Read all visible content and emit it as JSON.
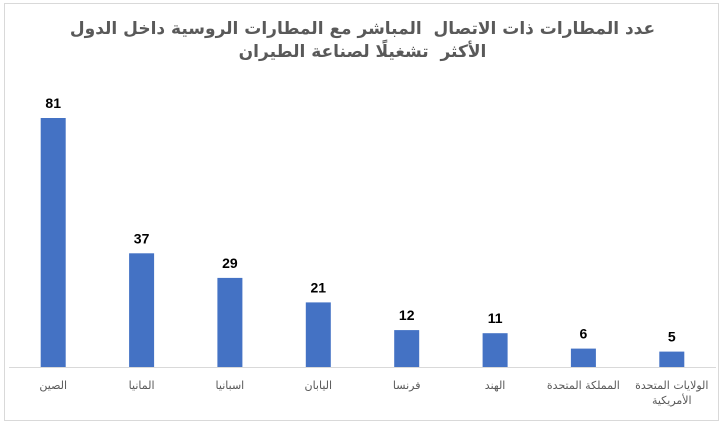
{
  "chart_data": {
    "type": "bar",
    "title_lines": [
      "عدد المطارات ذات الاتصال  المباشر مع المطارات الروسية داخل الدول",
      "الأكثر  تشغيلًا لصناعة الطيران"
    ],
    "categories": [
      "الصين",
      "المانيا",
      "اسبانيا",
      "اليابان",
      "فرنسا",
      "الهند",
      "المملكة المتحدة",
      [
        "الولايات المتحدة",
        "الأمريكية"
      ]
    ],
    "values": [
      81,
      37,
      29,
      21,
      12,
      11,
      6,
      5
    ],
    "xlabel": "",
    "ylabel": "",
    "ylim": [
      0,
      81
    ],
    "grid": false,
    "legend": "none",
    "data_labels": true,
    "colors": {
      "bar": "#4472c4",
      "axis": "#d9d9d9",
      "title": "#595959",
      "category_text": "#595959",
      "value_text": "#000000"
    }
  }
}
